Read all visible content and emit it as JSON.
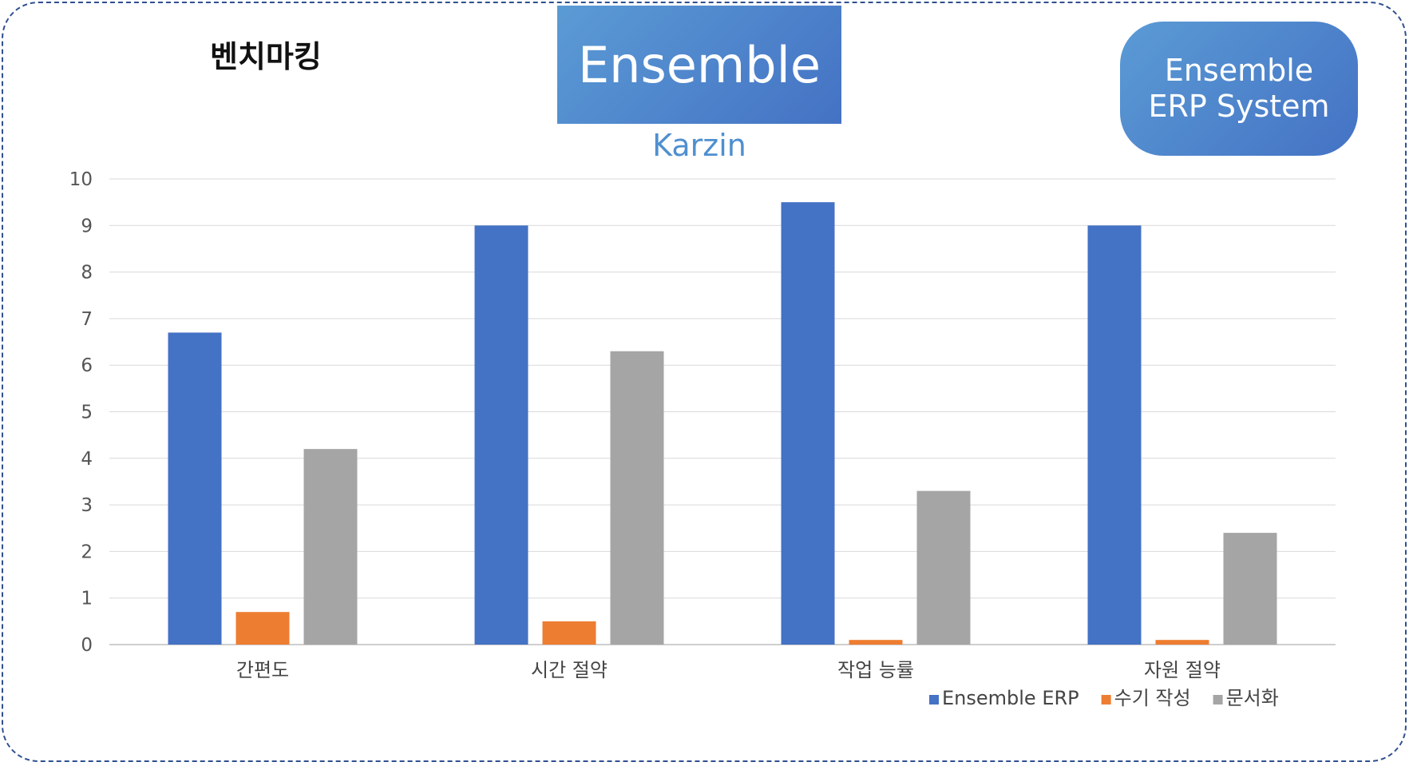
{
  "header": {
    "section_title": "벤치마킹",
    "brand": "Ensemble",
    "brand_sub": "Karzin",
    "system_line1": "Ensemble",
    "system_line2": "ERP System"
  },
  "colors": {
    "frame": "#2f4f8f",
    "brand_gradient_start": "#5b9bd5",
    "brand_gradient_end": "#4472c4"
  },
  "chart_data": {
    "type": "bar",
    "title": "",
    "xlabel": "",
    "ylabel": "",
    "ylim": [
      0,
      10
    ],
    "yticks": [
      0,
      1,
      2,
      3,
      4,
      5,
      6,
      7,
      8,
      9,
      10
    ],
    "grid": true,
    "legend_position": "bottom-right",
    "categories": [
      "간편도",
      "시간 절약",
      "작업 능률",
      "자원 절약"
    ],
    "series": [
      {
        "name": "Ensemble ERP",
        "color": "#4472c4",
        "values": [
          6.7,
          9.0,
          9.5,
          9.0
        ]
      },
      {
        "name": "수기 작성",
        "color": "#ed7d31",
        "values": [
          0.7,
          0.5,
          0.1,
          0.1
        ]
      },
      {
        "name": "문서화",
        "color": "#a5a5a5",
        "values": [
          4.2,
          6.3,
          3.3,
          2.4
        ]
      }
    ]
  }
}
